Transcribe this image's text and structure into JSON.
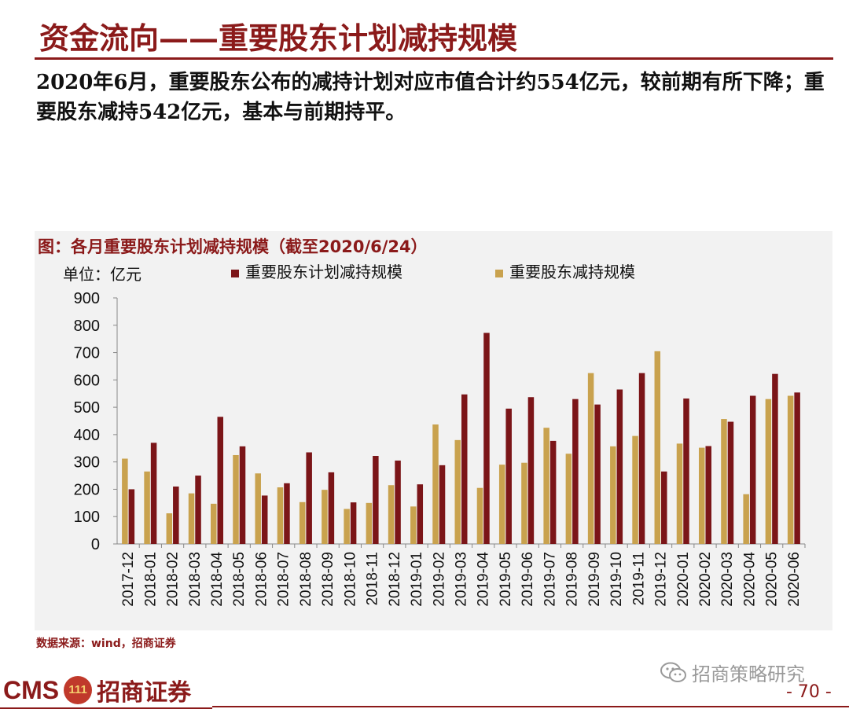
{
  "page": {
    "title": "资金流向——重要股东计划减持规模",
    "summary": "2020年6月，重要股东公布的减持计划对应市值合计约554亿元，较前期有所下降；重要股东减持542亿元，基本与前期持平。",
    "source": "数据来源：wind，招商证券",
    "page_number": "- 70 -"
  },
  "branding": {
    "logo_en": "CMS",
    "logo_badge": "111",
    "logo_cn": "招商证券",
    "watermark": "招商策略研究",
    "watermark_icon": "wechat-icon"
  },
  "colors": {
    "brand": "#8B1A1A",
    "series_plan": "#7B1518",
    "series_actual": "#C9A24E",
    "panel_bg": "#f2f2f2"
  },
  "chart_data": {
    "type": "bar",
    "title": "图：各月重要股东计划减持规模（截至2020/6/24）",
    "unit_label": "单位：亿元",
    "ylim": [
      0,
      900
    ],
    "yticks": [
      0,
      100,
      200,
      300,
      400,
      500,
      600,
      700,
      800,
      900
    ],
    "categories": [
      "2017-12",
      "2018-01",
      "2018-02",
      "2018-03",
      "2018-04",
      "2018-05",
      "2018-06",
      "2018-07",
      "2018-08",
      "2018-09",
      "2018-10",
      "2018-11",
      "2018-12",
      "2019-01",
      "2019-02",
      "2019-03",
      "2019-04",
      "2019-05",
      "2019-06",
      "2019-07",
      "2019-08",
      "2019-09",
      "2019-10",
      "2019-11",
      "2019-12",
      "2020-01",
      "2020-02",
      "2020-03",
      "2020-04",
      "2020-05",
      "2020-06"
    ],
    "series": [
      {
        "name": "重要股东减持规模",
        "color": "#C9A24E",
        "values": [
          312,
          265,
          112,
          185,
          147,
          325,
          258,
          207,
          153,
          198,
          128,
          150,
          215,
          137,
          437,
          380,
          205,
          290,
          297,
          425,
          330,
          625,
          357,
          395,
          705,
          367,
          352,
          457,
          182,
          530,
          542
        ]
      },
      {
        "name": "重要股东计划减持规模",
        "color": "#7B1518",
        "values": [
          200,
          370,
          210,
          250,
          465,
          357,
          177,
          222,
          335,
          262,
          152,
          322,
          305,
          218,
          288,
          547,
          772,
          495,
          537,
          377,
          530,
          510,
          565,
          625,
          265,
          532,
          358,
          447,
          542,
          622,
          554
        ]
      }
    ],
    "legend": [
      "重要股东计划减持规模",
      "重要股东减持规模"
    ],
    "grid": false
  }
}
